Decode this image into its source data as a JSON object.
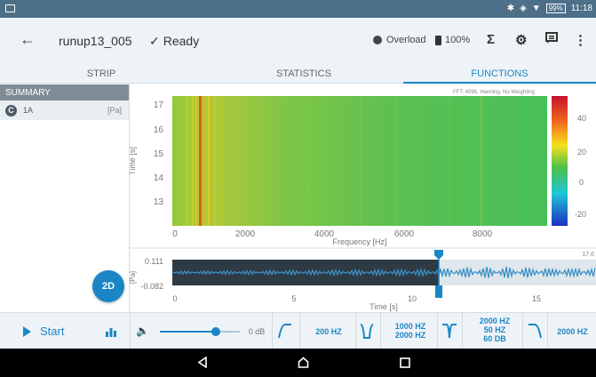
{
  "status_bar": {
    "battery": "99%",
    "time": "11:18"
  },
  "appbar": {
    "title": "runup13_005",
    "status": "Ready",
    "overload_label": "Overload",
    "storage_label": "100%",
    "icons": [
      "back-arrow-icon",
      "checkmark-icon",
      "sigma-icon",
      "gear-icon",
      "comment-icon",
      "more-vert-icon"
    ]
  },
  "tabs": [
    "STRIP",
    "STATISTICS",
    "FUNCTIONS"
  ],
  "active_tab": "FUNCTIONS",
  "sidebar": {
    "header": "SUMMARY",
    "channel": {
      "icon_letter": "C",
      "name": "1A",
      "unit": "[Pa]"
    }
  },
  "fab_label": "2D",
  "spectrogram": {
    "info": "FFT: 4096, Hanning, No Weighting",
    "y_label": "Time [s]",
    "y_ticks": [
      "17",
      "16",
      "15",
      "14",
      "13"
    ],
    "x_label": "Frequency [Hz]",
    "x_ticks": [
      "0",
      "2000",
      "4000",
      "6000",
      "8000"
    ],
    "colorbar_ticks": [
      "40",
      "20",
      "0",
      "-20"
    ]
  },
  "waveform": {
    "y_label": "[Pa]",
    "y_max": "0.111",
    "y_min": "-0.082",
    "x_label": "Time [s]",
    "x_ticks": [
      "0",
      "5",
      "10",
      "15"
    ],
    "cursor_time": "17.6"
  },
  "toolbar": {
    "start_label": "Start",
    "volume_db": "0 dB",
    "volume_level": 0.7,
    "filter1": "200 HZ",
    "filter2_line1": "1000 HZ",
    "filter2_line2": "2000 HZ",
    "filter3_line1": "2000 HZ",
    "filter3_line2": "50 HZ",
    "filter3_line3": "60 DB",
    "filter4": "2000 HZ"
  },
  "colors": {
    "accent": "#1b86c6",
    "statusbar": "#4d6f88",
    "waveform": "#3b8fc4"
  }
}
